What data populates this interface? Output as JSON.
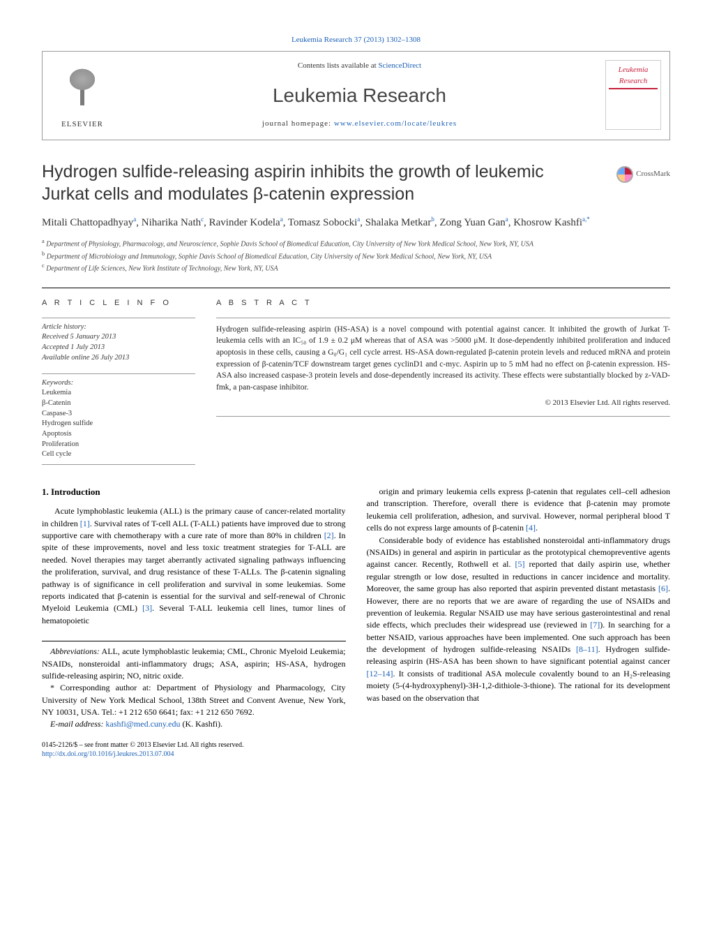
{
  "header": {
    "citation": "Leukemia Research 37 (2013) 1302–1308",
    "contents_prefix": "Contents lists available at ",
    "contents_link": "ScienceDirect",
    "journal": "Leukemia Research",
    "homepage_prefix": "journal homepage: ",
    "homepage_link": "www.elsevier.com/locate/leukres",
    "elsevier": "ELSEVIER",
    "cover_title": "Leukemia Research",
    "crossmark": "CrossMark"
  },
  "article": {
    "title": "Hydrogen sulfide-releasing aspirin inhibits the growth of leukemic Jurkat cells and modulates β-catenin expression",
    "authors_html": "Mitali Chattopadhyay<sup>a</sup>, Niharika Nath<sup>c</sup>, Ravinder Kodela<sup>a</sup>, Tomasz Sobocki<sup>a</sup>, Shalaka Metkar<sup>b</sup>, Zong Yuan Gan<sup>a</sup>, Khosrow Kashfi<sup>a,*</sup>",
    "affiliations": [
      {
        "sup": "a",
        "text": "Department of Physiology, Pharmacology, and Neuroscience, Sophie Davis School of Biomedical Education, City University of New York Medical School, New York, NY, USA"
      },
      {
        "sup": "b",
        "text": "Department of Microbiology and Immunology, Sophie Davis School of Biomedical Education, City University of New York Medical School, New York, NY, USA"
      },
      {
        "sup": "c",
        "text": "Department of Life Sciences, New York Institute of Technology, New York, NY, USA"
      }
    ]
  },
  "info": {
    "label": "A R T I C L E   I N F O",
    "history_label": "Article history:",
    "history": [
      "Received 5 January 2013",
      "Accepted 1 July 2013",
      "Available online 26 July 2013"
    ],
    "keywords_label": "Keywords:",
    "keywords": [
      "Leukemia",
      "β-Catenin",
      "Caspase-3",
      "Hydrogen sulfide",
      "Apoptosis",
      "Proliferation",
      "Cell cycle"
    ]
  },
  "abstract": {
    "label": "A B S T R A C T",
    "text": "Hydrogen sulfide-releasing aspirin (HS-ASA) is a novel compound with potential against cancer. It inhibited the growth of Jurkat T-leukemia cells with an IC₅₀ of 1.9 ± 0.2 μM whereas that of ASA was >5000 μM. It dose-dependently inhibited proliferation and induced apoptosis in these cells, causing a G₀/G₁ cell cycle arrest. HS-ASA down-regulated β-catenin protein levels and reduced mRNA and protein expression of β-catenin/TCF downstream target genes cyclinD1 and c-myc. Aspirin up to 5 mM had no effect on β-catenin expression. HS-ASA also increased caspase-3 protein levels and dose-dependently increased its activity. These effects were substantially blocked by z-VAD-fmk, a pan-caspase inhibitor.",
    "copyright": "© 2013 Elsevier Ltd. All rights reserved."
  },
  "body": {
    "section_heading": "1.  Introduction",
    "left_p1": "Acute lymphoblastic leukemia (ALL) is the primary cause of cancer-related mortality in children [1]. Survival rates of T-cell ALL (T-ALL) patients have improved due to strong supportive care with chemotherapy with a cure rate of more than 80% in children [2]. In spite of these improvements, novel and less toxic treatment strategies for T-ALL are needed. Novel therapies may target aberrantly activated signaling pathways influencing the proliferation, survival, and drug resistance of these T-ALLs. The β-catenin signaling pathway is of significance in cell proliferation and survival in some leukemias. Some reports indicated that β-catenin is essential for the survival and self-renewal of Chronic Myeloid Leukemia (CML) [3]. Several T-ALL leukemia cell lines, tumor lines of hematopoietic",
    "right_p1": "origin and primary leukemia cells express β-catenin that regulates cell–cell adhesion and transcription. Therefore, overall there is evidence that β-catenin may promote leukemia cell proliferation, adhesion, and survival. However, normal peripheral blood T cells do not express large amounts of β-catenin [4].",
    "right_p2": "Considerable body of evidence has established nonsteroidal anti-inflammatory drugs (NSAIDs) in general and aspirin in particular as the prototypical chemopreventive agents against cancer. Recently, Rothwell et al. [5] reported that daily aspirin use, whether regular strength or low dose, resulted in reductions in cancer incidence and mortality. Moreover, the same group has also reported that aspirin prevented distant metastasis [6]. However, there are no reports that we are aware of regarding the use of NSAIDs and prevention of leukemia. Regular NSAID use may have serious gasterointestinal and renal side effects, which precludes their widespread use (reviewed in [7]). In searching for a better NSAID, various approaches have been implemented. One such approach has been the development of hydrogen sulfide-releasing NSAIDs [8–11]. Hydrogen sulfide-releasing aspirin (HS-ASA has been shown to have significant potential against cancer [12–14]. It consists of traditional ASA molecule covalently bound to an H₂S-releasing moiety (5-(4-hydroxyphenyl)-3H-1,2-dithiole-3-thione). The rational for its development was based on the observation that"
  },
  "footnotes": {
    "abbrev_label": "Abbreviations:",
    "abbrev": " ALL, acute lymphoblastic leukemia; CML, Chronic Myeloid Leukemia; NSAIDs, nonsteroidal anti-inflammatory drugs; ASA, aspirin; HS-ASA, hydrogen sulfide-releasing aspirin; NO, nitric oxide.",
    "corr": "* Corresponding author at: Department of Physiology and Pharmacology, City University of New York Medical School, 138th Street and Convent Avenue, New York, NY 10031, USA. Tel.: +1 212 650 6641; fax: +1 212 650 7692.",
    "email_label": "E-mail address: ",
    "email": "kashfi@med.cuny.edu",
    "email_suffix": " (K. Kashfi)."
  },
  "footer": {
    "issn": "0145-2126/$ – see front matter © 2013 Elsevier Ltd. All rights reserved.",
    "doi": "http://dx.doi.org/10.1016/j.leukres.2013.07.004"
  },
  "colors": {
    "link": "#1a5fb4",
    "text": "#222222",
    "rule": "#000000",
    "cover_red": "#c41e3a"
  }
}
